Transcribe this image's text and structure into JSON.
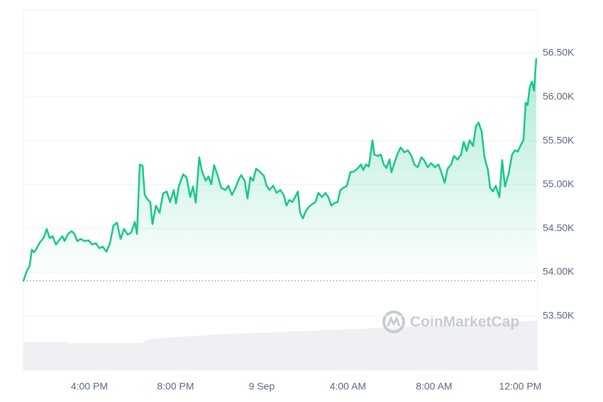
{
  "chart_data": {
    "type": "line",
    "watermark": "CoinMarketCap",
    "color": "#16c784",
    "grid": true,
    "x": [
      12.94,
      13.1,
      13.23,
      13.33,
      13.43,
      13.56,
      13.7,
      13.89,
      14.02,
      14.16,
      14.29,
      14.45,
      14.62,
      14.75,
      14.85,
      15.01,
      15.18,
      15.31,
      15.44,
      15.6,
      15.77,
      15.97,
      16.13,
      16.3,
      16.46,
      16.63,
      16.79,
      16.95,
      17.12,
      17.28,
      17.45,
      17.61,
      17.78,
      17.94,
      18.11,
      18.21,
      18.34,
      18.47,
      18.57,
      18.7,
      18.83,
      18.93,
      19.09,
      19.26,
      19.42,
      19.59,
      19.75,
      19.92,
      20.02,
      20.15,
      20.35,
      20.51,
      20.68,
      20.81,
      20.94,
      21.1,
      21.23,
      21.4,
      21.53,
      21.66,
      21.79,
      21.96,
      22.12,
      22.32,
      22.45,
      22.62,
      22.78,
      22.95,
      23.05,
      23.21,
      23.34,
      23.47,
      23.6,
      23.74,
      23.9,
      24.1,
      24.23,
      24.36,
      24.53,
      24.69,
      24.86,
      25.02,
      25.15,
      25.28,
      25.42,
      25.55,
      25.68,
      25.78,
      25.91,
      26.04,
      26.21,
      26.34,
      26.5,
      26.63,
      26.8,
      26.96,
      27.09,
      27.23,
      27.39,
      27.52,
      27.65,
      27.79,
      27.95,
      28.11,
      28.28,
      28.44,
      28.61,
      28.71,
      28.84,
      28.97,
      29.14,
      29.23,
      29.37,
      29.53,
      29.66,
      29.79,
      29.93,
      30.02,
      30.16,
      30.29,
      30.45,
      30.62,
      30.78,
      30.95,
      31.08,
      31.24,
      31.41,
      31.54,
      31.7,
      31.87,
      32.03,
      32.2,
      32.33,
      32.49,
      32.63,
      32.79,
      32.92,
      33.09,
      33.25,
      33.38,
      33.51,
      33.65,
      33.81,
      33.94,
      34.07,
      34.21,
      34.34,
      34.5,
      34.6,
      34.73,
      34.86,
      35.03,
      35.16,
      35.29,
      35.46,
      35.62,
      35.75,
      35.88,
      36.02,
      36.15,
      36.25,
      36.34,
      36.44,
      36.54,
      36.64,
      36.74
    ],
    "values": [
      53903,
      54016,
      54073,
      54259,
      54227,
      54275,
      54340,
      54397,
      54494,
      54389,
      54413,
      54316,
      54372,
      54413,
      54356,
      54437,
      54469,
      54437,
      54356,
      54380,
      54356,
      54364,
      54316,
      54332,
      54275,
      54291,
      54235,
      54324,
      54534,
      54566,
      54380,
      54494,
      54429,
      54453,
      54575,
      54437,
      55230,
      55214,
      54882,
      54833,
      54801,
      54550,
      54760,
      54680,
      54898,
      54922,
      54801,
      54939,
      54785,
      54979,
      55117,
      55085,
      54858,
      54979,
      54793,
      55311,
      55149,
      55044,
      55093,
      55004,
      55222,
      55101,
      54963,
      54939,
      54987,
      54882,
      54963,
      55068,
      55109,
      55044,
      54841,
      55085,
      55044,
      55182,
      55149,
      55101,
      54987,
      54939,
      54987,
      54906,
      54939,
      54882,
      54760,
      54825,
      54801,
      54858,
      54922,
      54680,
      54615,
      54696,
      54752,
      54777,
      54801,
      54906,
      54858,
      54906,
      54858,
      54760,
      54793,
      54801,
      54939,
      54963,
      54987,
      55141,
      55149,
      55182,
      55230,
      55166,
      55230,
      55206,
      55505,
      55343,
      55327,
      55343,
      55230,
      55190,
      55287,
      55141,
      55246,
      55343,
      55424,
      55368,
      55392,
      55327,
      55230,
      55198,
      55311,
      55279,
      55198,
      55246,
      55198,
      55230,
      55149,
      55020,
      55182,
      55230,
      55327,
      55287,
      55343,
      55489,
      55384,
      55505,
      55441,
      55667,
      55707,
      55602,
      55311,
      55166,
      54963,
      54922,
      54987,
      54858,
      55279,
      54979,
      55125,
      55343,
      55392,
      55376,
      55449,
      55513,
      55934,
      55909,
      56112,
      56177,
      56071,
      56435
    ],
    "baseline": 53903,
    "xlim": [
      12.94,
      36.81
    ],
    "xticks": [
      {
        "value": 16,
        "label": "4:00 PM"
      },
      {
        "value": 20,
        "label": "8:00 PM"
      },
      {
        "value": 24,
        "label": "9 Sep"
      },
      {
        "value": 28,
        "label": "4:00 AM"
      },
      {
        "value": 32,
        "label": "8:00 AM"
      },
      {
        "value": 36,
        "label": "12:00 PM"
      }
    ],
    "ylim": [
      52884,
      56993
    ],
    "yticks": [
      {
        "value": 53500,
        "label": "53.50K"
      },
      {
        "value": 54000,
        "label": "54.00K"
      },
      {
        "value": 54500,
        "label": "54.50K"
      },
      {
        "value": 55000,
        "label": "55.00K"
      },
      {
        "value": 55500,
        "label": "55.50K"
      },
      {
        "value": 56000,
        "label": "56.00K"
      },
      {
        "value": 56500,
        "label": "56.50K"
      }
    ]
  }
}
